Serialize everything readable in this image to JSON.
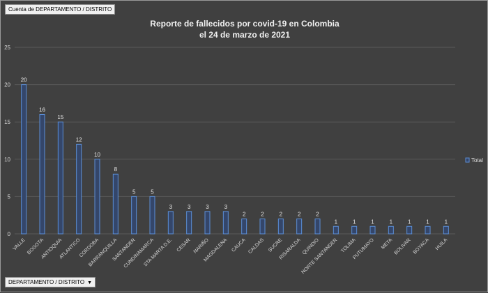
{
  "filters": {
    "top_field": "Cuenta de DEPARTAMENTO / DISTRITO",
    "bottom_field": "DEPARTAMENTO / DISTRITO",
    "dropdown_icon": "triangle-down-icon"
  },
  "colors": {
    "background": "#404040",
    "bar_fill": "#34466a",
    "bar_stroke": "#5b8ed6",
    "gridline": "#5a5a5a"
  },
  "chart_data": {
    "type": "bar",
    "title": "Reporte de fallecidos por covid-19 en Colombia",
    "subtitle": "el 24 de marzo de 2021",
    "categories": [
      "VALLE",
      "BOGOTA",
      "ANTIOQUIA",
      "ATLANTICO",
      "CORDOBA",
      "BARRANQUILLA",
      "SANTANDER",
      "CUNDINAMARCA",
      "STA MARTA D.E.",
      "CESAR",
      "NARIÑO",
      "MAGDALENA",
      "CAUCA",
      "CALDAS",
      "SUCRE",
      "RISARALDA",
      "QUINDIO",
      "NORTE SANTANDER",
      "TOLIMA",
      "PUTUMAYO",
      "META",
      "BOLIVAR",
      "BOYACA",
      "HUILA"
    ],
    "series": [
      {
        "name": "Total",
        "values": [
          20,
          16,
          15,
          12,
          10,
          8,
          5,
          5,
          3,
          3,
          3,
          3,
          2,
          2,
          2,
          2,
          2,
          1,
          1,
          1,
          1,
          1,
          1,
          1
        ]
      }
    ],
    "ylim": [
      0,
      25
    ],
    "yticks": [
      0,
      5,
      10,
      15,
      20,
      25
    ],
    "grid": true,
    "legend": "right",
    "data_labels": true
  }
}
